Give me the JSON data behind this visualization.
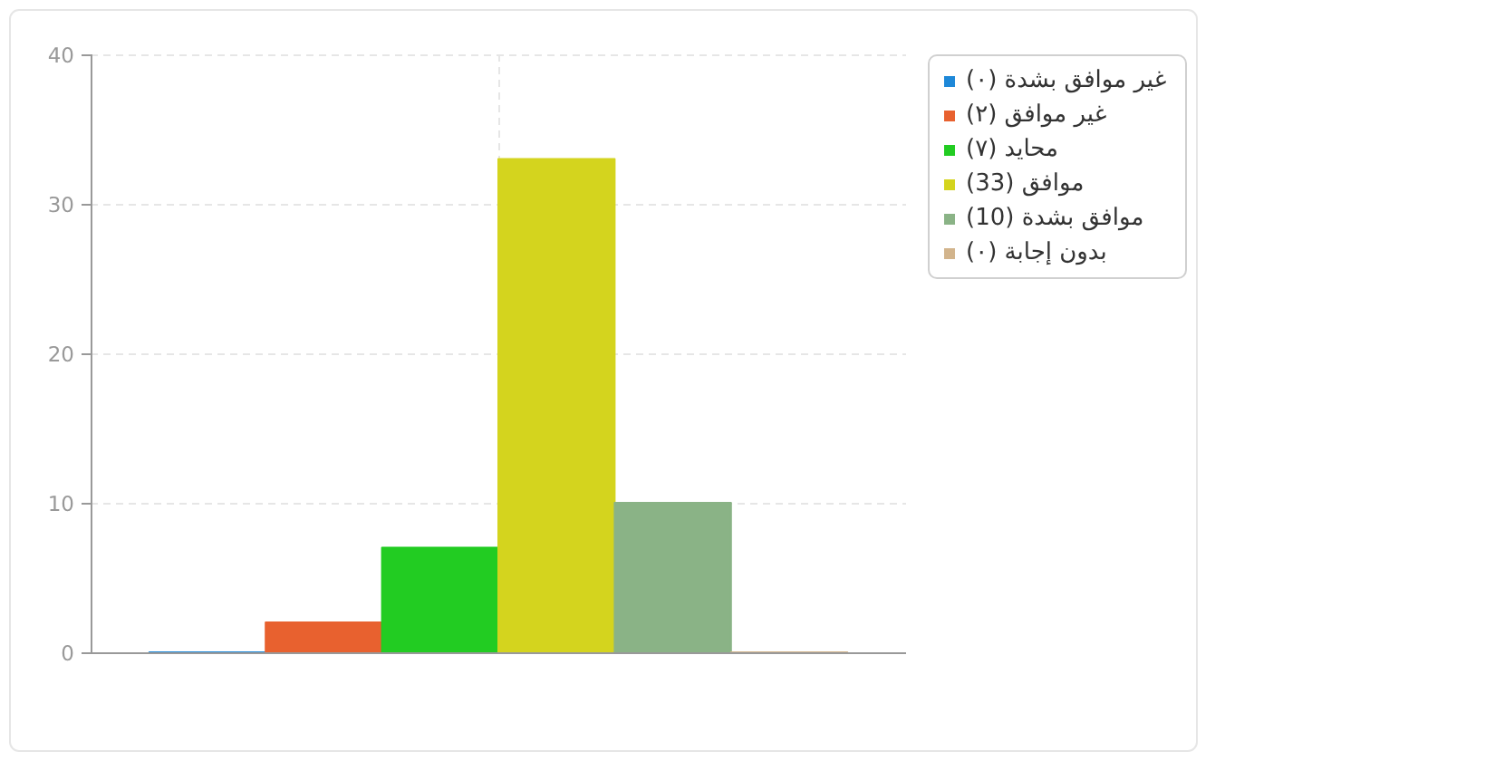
{
  "chart_data": {
    "type": "bar",
    "categories": [
      null
    ],
    "series": [
      {
        "name": "غير موافق بشدة (٠)",
        "color": "#1e88d8",
        "values": [
          0
        ]
      },
      {
        "name": "غير موافق (٢)",
        "color": "#e8612f",
        "values": [
          2
        ]
      },
      {
        "name": "محايد (٧)",
        "color": "#22cc22",
        "values": [
          7
        ]
      },
      {
        "name": "موافق (33)",
        "color": "#d4d41e",
        "values": [
          33
        ]
      },
      {
        "name": "موافق بشدة (10)",
        "color": "#8ab386",
        "values": [
          10
        ]
      },
      {
        "name": "بدون إجابة (٠)",
        "color": "#d2b48c",
        "values": [
          0
        ]
      }
    ],
    "ylim": [
      0,
      40
    ],
    "yticks": [
      0,
      10,
      20,
      30,
      40
    ],
    "grid": true,
    "legend": "right"
  }
}
